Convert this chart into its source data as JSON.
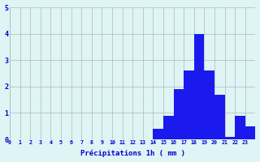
{
  "categories": [
    0,
    1,
    2,
    3,
    4,
    5,
    6,
    7,
    8,
    9,
    10,
    11,
    12,
    13,
    14,
    15,
    16,
    17,
    18,
    19,
    20,
    21,
    22,
    23
  ],
  "values": [
    0,
    0,
    0,
    0,
    0,
    0,
    0,
    0,
    0,
    0,
    0,
    0,
    0,
    0,
    0.4,
    0.9,
    1.9,
    2.6,
    4.0,
    2.6,
    1.7,
    0.1,
    0.9,
    0.5
  ],
  "bar_color": "#1a1aee",
  "background_color": "#dff4f4",
  "grid_color": "#b0b8b8",
  "xlabel": "Précipitations 1h ( mm )",
  "xlabel_color": "#0000cc",
  "tick_color": "#0000cc",
  "ylim": [
    0,
    5
  ],
  "yticks": [
    0,
    1,
    2,
    3,
    4,
    5
  ],
  "xlim": [
    0,
    24
  ]
}
